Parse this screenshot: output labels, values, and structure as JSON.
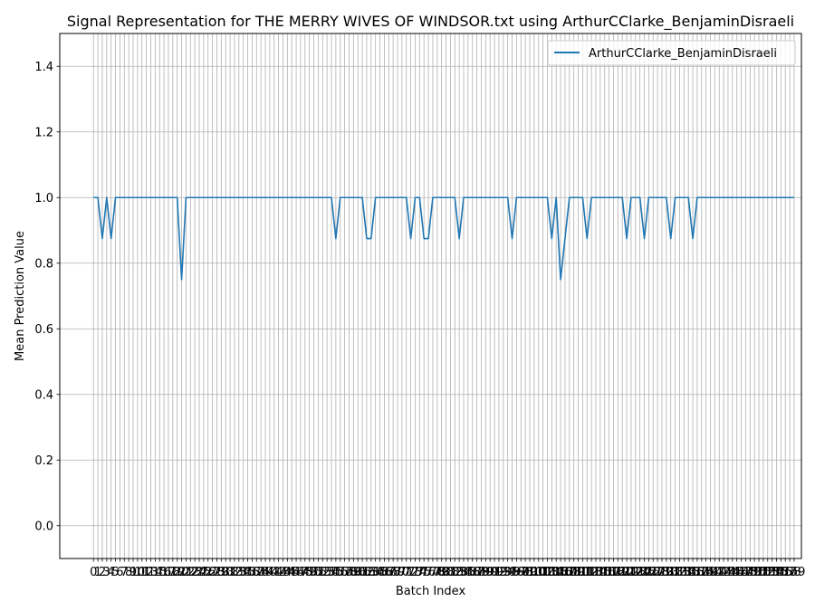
{
  "chart_data": {
    "type": "line",
    "title": "Signal Representation for THE MERRY WIVES OF WINDSOR.txt using ArthurCClarke_BenjaminDisraeli",
    "xlabel": "Batch Index",
    "ylabel": "Mean Prediction Value",
    "xlim": [
      -7.65,
      160.65
    ],
    "ylim": [
      -0.1,
      1.5
    ],
    "yticks": [
      0.0,
      0.2,
      0.4,
      0.6,
      0.8,
      1.0,
      1.2,
      1.4
    ],
    "ytick_labels": [
      "0.0",
      "0.2",
      "0.4",
      "0.6",
      "0.8",
      "1.0",
      "1.2",
      "1.4"
    ],
    "grid": true,
    "legend_position": "upper right",
    "series": [
      {
        "name": "ArthurCClarke_BenjaminDisraeli",
        "color": "#1f77b4",
        "x_start": 0,
        "values": [
          1.0,
          1.0,
          0.875,
          1.0,
          0.875,
          1.0,
          1.0,
          1.0,
          1.0,
          1.0,
          1.0,
          1.0,
          1.0,
          1.0,
          1.0,
          1.0,
          1.0,
          1.0,
          1.0,
          1.0,
          0.75,
          1.0,
          1.0,
          1.0,
          1.0,
          1.0,
          1.0,
          1.0,
          1.0,
          1.0,
          1.0,
          1.0,
          1.0,
          1.0,
          1.0,
          1.0,
          1.0,
          1.0,
          1.0,
          1.0,
          1.0,
          1.0,
          1.0,
          1.0,
          1.0,
          1.0,
          1.0,
          1.0,
          1.0,
          1.0,
          1.0,
          1.0,
          1.0,
          1.0,
          1.0,
          0.875,
          1.0,
          1.0,
          1.0,
          1.0,
          1.0,
          1.0,
          0.875,
          0.875,
          1.0,
          1.0,
          1.0,
          1.0,
          1.0,
          1.0,
          1.0,
          1.0,
          0.875,
          1.0,
          1.0,
          0.875,
          0.875,
          1.0,
          1.0,
          1.0,
          1.0,
          1.0,
          1.0,
          0.875,
          1.0,
          1.0,
          1.0,
          1.0,
          1.0,
          1.0,
          1.0,
          1.0,
          1.0,
          1.0,
          1.0,
          0.875,
          1.0,
          1.0,
          1.0,
          1.0,
          1.0,
          1.0,
          1.0,
          1.0,
          0.875,
          1.0,
          0.75,
          0.875,
          1.0,
          1.0,
          1.0,
          1.0,
          0.875,
          1.0,
          1.0,
          1.0,
          1.0,
          1.0,
          1.0,
          1.0,
          1.0,
          0.875,
          1.0,
          1.0,
          1.0,
          0.875,
          1.0,
          1.0,
          1.0,
          1.0,
          1.0,
          0.875,
          1.0,
          1.0,
          1.0,
          1.0,
          0.875,
          1.0,
          1.0,
          1.0,
          1.0,
          1.0,
          1.0,
          1.0,
          1.0,
          1.0,
          1.0,
          1.0,
          1.0,
          1.0,
          1.0,
          1.0,
          1.0,
          1.0,
          1.0,
          1.0,
          1.0,
          1.0,
          1.0,
          1.0
        ]
      }
    ]
  }
}
